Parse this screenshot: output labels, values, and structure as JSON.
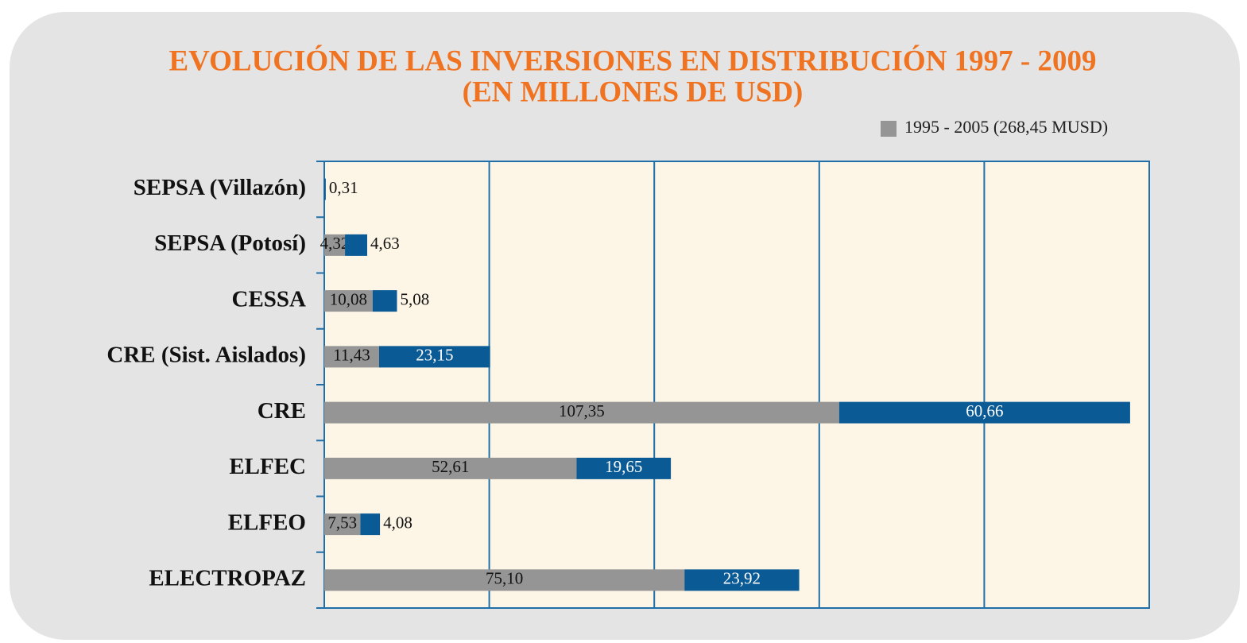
{
  "chart_data": {
    "type": "stacked_barh",
    "title": "EVOLUCIÓN DE LAS INVERSIONES EN DISTRIBUCIÓN 1997 - 2009",
    "subtitle": "(EN MILLONES DE USD)",
    "categories": [
      "SEPSA (Villazón)",
      "SEPSA (Potosí)",
      "CESSA",
      "CRE (Sist. Aislados)",
      "CRE",
      "ELFEC",
      "ELFEO",
      "ELECTROPAZ"
    ],
    "series": [
      {
        "name": "1995 - 2005 (268,45 MUSD)",
        "color": "#959595",
        "values": [
          null,
          4.32,
          10.08,
          11.43,
          107.35,
          52.61,
          7.53,
          75.1
        ],
        "value_labels": [
          null,
          "4,32",
          "10,08",
          "11,43",
          "107,35",
          "52,61",
          "7,53",
          "75,10"
        ]
      },
      {
        "color": "#0a5a96",
        "values": [
          0.31,
          4.63,
          5.08,
          23.15,
          60.66,
          19.65,
          4.08,
          23.92
        ],
        "value_labels": [
          "0,31",
          "4,63",
          "5,08",
          "23,15",
          "60,66",
          "19,65",
          "4,08",
          "23,92"
        ]
      }
    ],
    "xlim": [
      0,
      172
    ],
    "xticks": [
      0,
      34.4,
      68.8,
      103.2,
      137.6,
      172
    ],
    "grid": true,
    "legend": "top-right"
  }
}
